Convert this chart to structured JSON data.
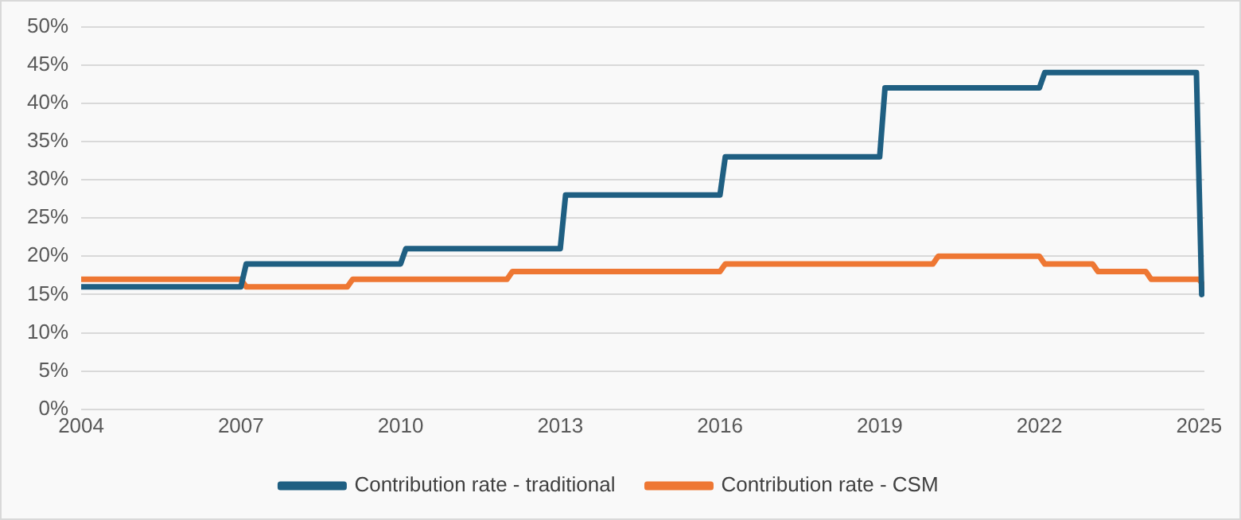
{
  "chart_data": {
    "type": "line",
    "xlim": [
      2004,
      2025.1
    ],
    "xticks": [
      2004,
      2007,
      2010,
      2013,
      2016,
      2019,
      2022,
      2025
    ],
    "ylim": [
      0,
      50
    ],
    "yticks": [
      {
        "value": 0,
        "label": "0%"
      },
      {
        "value": 5,
        "label": "5%"
      },
      {
        "value": 10,
        "label": "10%"
      },
      {
        "value": 15,
        "label": "15%"
      },
      {
        "value": 20,
        "label": "20%"
      },
      {
        "value": 25,
        "label": "25%"
      },
      {
        "value": 30,
        "label": "30%"
      },
      {
        "value": 35,
        "label": "35%"
      },
      {
        "value": 40,
        "label": "40%"
      },
      {
        "value": 45,
        "label": "45%"
      },
      {
        "value": 50,
        "label": "50%"
      }
    ],
    "grid": "y",
    "legend": "bottom",
    "marker": "none",
    "line_style": "solid",
    "series": [
      {
        "name": "Contribution rate - traditional",
        "color": "#1f5f82",
        "x": [
          2004,
          2007,
          2007.1,
          2010,
          2010.1,
          2013,
          2013.1,
          2016,
          2016.1,
          2019,
          2019.1,
          2022,
          2022.1,
          2024.95,
          2025.05
        ],
        "values": [
          16,
          16,
          19,
          19,
          21,
          21,
          28,
          28,
          33,
          33,
          42,
          42,
          44,
          44,
          15
        ]
      },
      {
        "name": "Contribution rate - CSM",
        "color": "#ee7733",
        "x": [
          2004,
          2007,
          2007.1,
          2009,
          2009.1,
          2012,
          2012.1,
          2016,
          2016.1,
          2020,
          2020.1,
          2022,
          2022.1,
          2023,
          2023.1,
          2024,
          2024.1,
          2025,
          2025.1
        ],
        "values": [
          17,
          17,
          16,
          16,
          17,
          17,
          18,
          18,
          19,
          19,
          20,
          20,
          19,
          19,
          18,
          18,
          17,
          17,
          16
        ]
      }
    ]
  }
}
